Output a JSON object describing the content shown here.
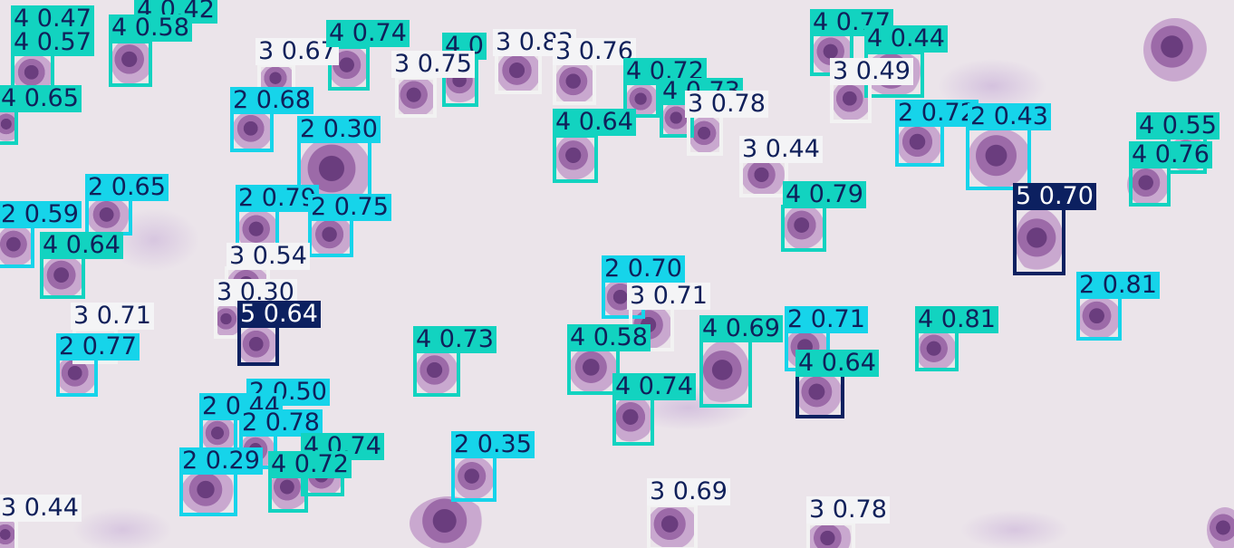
{
  "image": {
    "description_colors": {
      "class2": "#16d4ea",
      "class3": "#f4f4f6",
      "class4": "#12d3c0",
      "class5": "#0c2060"
    }
  },
  "detections": [
    {
      "label": "4 0.47"
    },
    {
      "label": "4 0.42"
    },
    {
      "label": "4 0.57"
    },
    {
      "label": "4 0.58"
    },
    {
      "label": "4 0.65"
    },
    {
      "label": "3 0.67"
    },
    {
      "label": "4 0.74"
    },
    {
      "label": "2 0.68"
    },
    {
      "label": "4 0"
    },
    {
      "label": "3 0.83"
    },
    {
      "label": "3 0.76"
    },
    {
      "label": "3 0.75"
    },
    {
      "label": "4 0.77"
    },
    {
      "label": "4 0.44"
    },
    {
      "label": "3 0.49"
    },
    {
      "label": "4 0.72"
    },
    {
      "label": "4 0.73"
    },
    {
      "label": "3 0.78"
    },
    {
      "label": "4 0.64"
    },
    {
      "label": "2 0.30"
    },
    {
      "label": "3 0.44"
    },
    {
      "label": "2 0.72"
    },
    {
      "label": "2 0.43"
    },
    {
      "label": "4 0.55"
    },
    {
      "label": "4 0.76"
    },
    {
      "label": "2 0.65"
    },
    {
      "label": "2 0.59"
    },
    {
      "label": "2 0.79"
    },
    {
      "label": "2 0.75"
    },
    {
      "label": "4 0.79"
    },
    {
      "label": "5 0.70"
    },
    {
      "label": "4 0.64"
    },
    {
      "label": "3 0.54"
    },
    {
      "label": "3 0.30"
    },
    {
      "label": "5 0.64"
    },
    {
      "label": "3 0.71"
    },
    {
      "label": "2 0.77"
    },
    {
      "label": "2 0.70"
    },
    {
      "label": "3 0.71"
    },
    {
      "label": "2 0.81"
    },
    {
      "label": "4 0.73"
    },
    {
      "label": "4 0.58"
    },
    {
      "label": "4 0.69"
    },
    {
      "label": "2 0.71"
    },
    {
      "label": "4 0.81"
    },
    {
      "label": "4 0.64"
    },
    {
      "label": "4 0.74"
    },
    {
      "label": "2 0.50"
    },
    {
      "label": "2 0.44"
    },
    {
      "label": "2 0.78"
    },
    {
      "label": "4 0.74"
    },
    {
      "label": "2 0.29"
    },
    {
      "label": "4 0.72"
    },
    {
      "label": "2 0.35"
    },
    {
      "label": "3 0.69"
    },
    {
      "label": "3 0.44"
    },
    {
      "label": "3 0.78"
    }
  ]
}
